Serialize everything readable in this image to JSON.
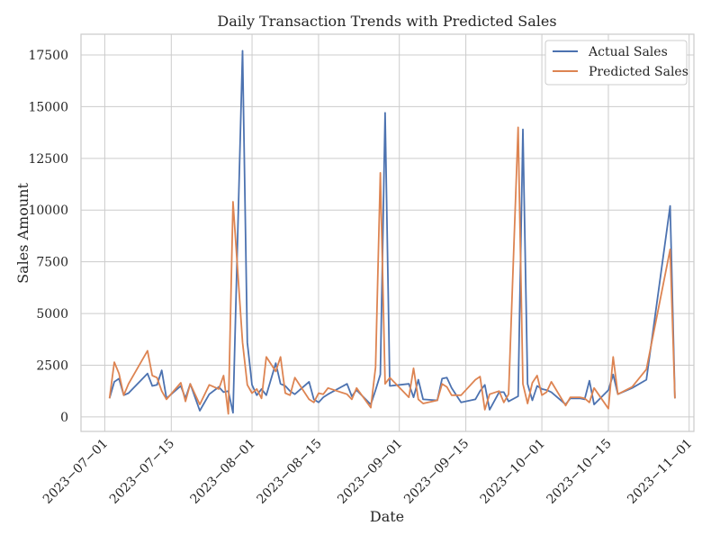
{
  "chart_data": {
    "type": "line",
    "title": "Daily Transaction Trends with Predicted Sales",
    "xlabel": "Date",
    "ylabel": "Sales Amount",
    "xlim": [
      "2023-06-26",
      "2023-11-02"
    ],
    "ylim": [
      -700,
      18500
    ],
    "x_ticks": [
      "2023-07-01",
      "2023-07-15",
      "2023-08-01",
      "2023-08-15",
      "2023-09-01",
      "2023-09-15",
      "2023-10-01",
      "2023-10-15",
      "2023-11-01"
    ],
    "y_ticks": [
      0,
      2500,
      5000,
      7500,
      10000,
      12500,
      15000,
      17500
    ],
    "grid": true,
    "legend_position": "top-right",
    "colors": {
      "actual": "#4c72b0",
      "predicted": "#dd8452",
      "grid": "#cccccc",
      "frame": "#cccccc"
    },
    "series": [
      {
        "name": "Actual Sales",
        "x": [
          "2023-07-02",
          "2023-07-03",
          "2023-07-04",
          "2023-07-05",
          "2023-07-06",
          "2023-07-10",
          "2023-07-11",
          "2023-07-12",
          "2023-07-13",
          "2023-07-14",
          "2023-07-17",
          "2023-07-18",
          "2023-07-19",
          "2023-07-21",
          "2023-07-23",
          "2023-07-25",
          "2023-07-26",
          "2023-07-27",
          "2023-07-28",
          "2023-07-30",
          "2023-07-31",
          "2023-08-01",
          "2023-08-02",
          "2023-08-03",
          "2023-08-04",
          "2023-08-06",
          "2023-08-07",
          "2023-08-08",
          "2023-08-09",
          "2023-08-10",
          "2023-08-13",
          "2023-08-14",
          "2023-08-15",
          "2023-08-16",
          "2023-08-17",
          "2023-08-21",
          "2023-08-22",
          "2023-08-23",
          "2023-08-26",
          "2023-08-27",
          "2023-08-28",
          "2023-08-29",
          "2023-08-30",
          "2023-09-03",
          "2023-09-04",
          "2023-09-05",
          "2023-09-06",
          "2023-09-09",
          "2023-09-10",
          "2023-09-11",
          "2023-09-12",
          "2023-09-14",
          "2023-09-17",
          "2023-09-18",
          "2023-09-19",
          "2023-09-20",
          "2023-09-22",
          "2023-09-23",
          "2023-09-24",
          "2023-09-26",
          "2023-09-27",
          "2023-09-28",
          "2023-09-29",
          "2023-09-30",
          "2023-10-01",
          "2023-10-02",
          "2023-10-03",
          "2023-10-06",
          "2023-10-07",
          "2023-10-09",
          "2023-10-10",
          "2023-10-11",
          "2023-10-12",
          "2023-10-15",
          "2023-10-16",
          "2023-10-17",
          "2023-10-20",
          "2023-10-23",
          "2023-10-28",
          "2023-10-29"
        ],
        "values": [
          900,
          1700,
          1850,
          1050,
          1150,
          2100,
          1500,
          1550,
          2250,
          900,
          1500,
          900,
          1600,
          300,
          1100,
          1450,
          1200,
          1250,
          200,
          17700,
          3600,
          1550,
          1050,
          1350,
          1050,
          2600,
          1600,
          1500,
          1250,
          1100,
          1700,
          850,
          700,
          950,
          1100,
          1600,
          1000,
          1300,
          600,
          1300,
          2050,
          14700,
          1500,
          1600,
          950,
          1800,
          850,
          800,
          1850,
          1900,
          1400,
          700,
          850,
          1250,
          1550,
          350,
          1200,
          1200,
          750,
          1000,
          13900,
          1600,
          800,
          1500,
          1350,
          1300,
          1200,
          600,
          900,
          900,
          850,
          1750,
          600,
          1300,
          2050,
          1100,
          1400,
          1800,
          10200,
          900
        ],
        "note_count": 80
      },
      {
        "name": "Predicted Sales",
        "x": [
          "2023-07-02",
          "2023-07-03",
          "2023-07-04",
          "2023-07-05",
          "2023-07-06",
          "2023-07-10",
          "2023-07-11",
          "2023-07-12",
          "2023-07-13",
          "2023-07-14",
          "2023-07-17",
          "2023-07-18",
          "2023-07-19",
          "2023-07-21",
          "2023-07-23",
          "2023-07-25",
          "2023-07-26",
          "2023-07-27",
          "2023-07-28",
          "2023-07-30",
          "2023-07-31",
          "2023-08-01",
          "2023-08-02",
          "2023-08-03",
          "2023-08-04",
          "2023-08-06",
          "2023-08-07",
          "2023-08-08",
          "2023-08-09",
          "2023-08-10",
          "2023-08-13",
          "2023-08-14",
          "2023-08-15",
          "2023-08-16",
          "2023-08-17",
          "2023-08-21",
          "2023-08-22",
          "2023-08-23",
          "2023-08-26",
          "2023-08-27",
          "2023-08-28",
          "2023-08-29",
          "2023-08-30",
          "2023-09-03",
          "2023-09-04",
          "2023-09-05",
          "2023-09-06",
          "2023-09-09",
          "2023-09-10",
          "2023-09-11",
          "2023-09-12",
          "2023-09-14",
          "2023-09-17",
          "2023-09-18",
          "2023-09-19",
          "2023-09-20",
          "2023-09-22",
          "2023-09-23",
          "2023-09-24",
          "2023-09-26",
          "2023-09-27",
          "2023-09-28",
          "2023-09-29",
          "2023-09-30",
          "2023-10-01",
          "2023-10-02",
          "2023-10-03",
          "2023-10-06",
          "2023-10-07",
          "2023-10-09",
          "2023-10-10",
          "2023-10-11",
          "2023-10-12",
          "2023-10-15",
          "2023-10-16",
          "2023-10-17",
          "2023-10-20",
          "2023-10-23",
          "2023-10-28",
          "2023-10-29"
        ],
        "values": [
          900,
          2650,
          2100,
          1050,
          1600,
          3200,
          2000,
          1900,
          1250,
          850,
          1650,
          750,
          1600,
          600,
          1550,
          1350,
          2000,
          150,
          10400,
          3600,
          1550,
          1150,
          1350,
          900,
          2900,
          2200,
          2900,
          1150,
          1050,
          1900,
          850,
          700,
          1150,
          1100,
          1400,
          1100,
          850,
          1400,
          450,
          2400,
          11800,
          1600,
          1900,
          950,
          2350,
          850,
          650,
          800,
          1600,
          1450,
          1050,
          1050,
          1800,
          1950,
          350,
          1100,
          1250,
          700,
          1100,
          14000,
          1600,
          650,
          1650,
          2000,
          1050,
          1200,
          1700,
          550,
          950,
          950,
          900,
          700,
          1400,
          400,
          2900,
          1100,
          1450,
          2300,
          8100,
          900
        ],
        "note_count": 80
      }
    ]
  }
}
